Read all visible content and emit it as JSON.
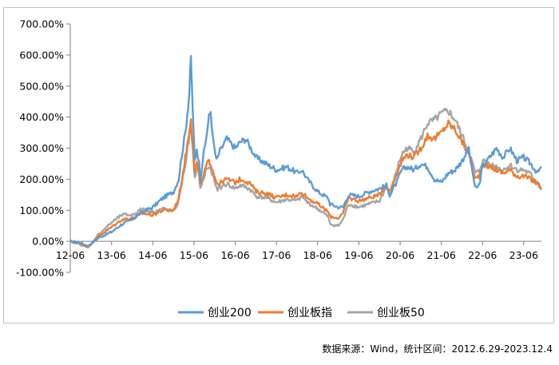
{
  "chart_data": {
    "type": "line",
    "title": "",
    "xlabel": "",
    "ylabel": "",
    "x_ticks": [
      "12-06",
      "13-06",
      "14-06",
      "15-06",
      "16-06",
      "17-06",
      "18-06",
      "19-06",
      "20-06",
      "21-06",
      "22-06",
      "23-06"
    ],
    "y_ticks": [
      "-100.00%",
      "0.00%",
      "100.00%",
      "200.00%",
      "300.00%",
      "400.00%",
      "500.00%",
      "600.00%",
      "700.00%"
    ],
    "ylim": [
      -100,
      700
    ],
    "grid": false,
    "legend_position": "bottom",
    "series": [
      {
        "name": "创业200",
        "color": "#5b9bd5",
        "x": [
          "2012-06-29",
          "2012-09-30",
          "2012-12-04",
          "2013-03-01",
          "2013-06-28",
          "2013-09-30",
          "2013-12-31",
          "2014-03-31",
          "2014-06-30",
          "2014-09-30",
          "2014-12-31",
          "2015-02-15",
          "2015-03-15",
          "2015-04-15",
          "2015-05-10",
          "2015-05-20",
          "2015-06-03",
          "2015-06-12",
          "2015-06-25",
          "2015-07-08",
          "2015-07-25",
          "2015-08-15",
          "2015-08-26",
          "2015-09-15",
          "2015-10-15",
          "2015-11-10",
          "2015-11-25",
          "2015-12-15",
          "2016-01-15",
          "2016-02-15",
          "2016-03-15",
          "2016-04-15",
          "2016-06-30",
          "2016-08-15",
          "2016-09-30",
          "2016-11-15",
          "2016-12-31",
          "2017-03-31",
          "2017-06-30",
          "2017-09-30",
          "2017-12-31",
          "2018-02-10",
          "2018-03-31",
          "2018-06-30",
          "2018-09-30",
          "2018-10-18",
          "2018-12-31",
          "2019-02-10",
          "2019-03-31",
          "2019-06-30",
          "2019-09-30",
          "2019-12-31",
          "2020-02-28",
          "2020-03-31",
          "2020-05-31",
          "2020-07-15",
          "2020-08-31",
          "2020-10-31",
          "2020-12-31",
          "2021-02-28",
          "2021-04-30",
          "2021-06-30",
          "2021-08-31",
          "2021-10-31",
          "2021-12-31",
          "2022-02-28",
          "2022-04-26",
          "2022-05-31",
          "2022-06-30",
          "2022-08-31",
          "2022-10-31",
          "2022-12-31",
          "2023-02-28",
          "2023-04-30",
          "2023-06-30",
          "2023-08-31",
          "2023-10-31",
          "2023-12-04"
        ],
        "y": [
          0,
          -5,
          -15,
          10,
          30,
          55,
          70,
          95,
          110,
          140,
          160,
          200,
          280,
          350,
          440,
          480,
          590,
          500,
          360,
          260,
          300,
          250,
          200,
          260,
          330,
          400,
          420,
          330,
          260,
          290,
          310,
          330,
          300,
          320,
          330,
          300,
          270,
          250,
          230,
          240,
          220,
          230,
          200,
          160,
          140,
          120,
          110,
          110,
          150,
          145,
          160,
          170,
          180,
          150,
          190,
          230,
          240,
          230,
          250,
          240,
          200,
          190,
          220,
          230,
          260,
          300,
          170,
          180,
          240,
          270,
          300,
          270,
          300,
          260,
          270,
          250,
          220,
          240
        ]
      },
      {
        "name": "创业板指",
        "color": "#ed7d31",
        "x": [
          "2012-06-29",
          "2012-09-30",
          "2012-12-04",
          "2013-03-01",
          "2013-06-28",
          "2013-09-30",
          "2013-12-31",
          "2014-03-31",
          "2014-06-30",
          "2014-09-30",
          "2014-12-31",
          "2015-02-15",
          "2015-03-15",
          "2015-04-15",
          "2015-05-10",
          "2015-05-20",
          "2015-06-03",
          "2015-06-12",
          "2015-06-25",
          "2015-07-08",
          "2015-07-25",
          "2015-08-15",
          "2015-08-26",
          "2015-09-15",
          "2015-10-15",
          "2015-11-10",
          "2015-11-25",
          "2015-12-15",
          "2016-01-15",
          "2016-02-15",
          "2016-03-15",
          "2016-04-15",
          "2016-06-30",
          "2016-08-15",
          "2016-09-30",
          "2016-11-15",
          "2016-12-31",
          "2017-03-31",
          "2017-06-30",
          "2017-09-30",
          "2017-12-31",
          "2018-02-10",
          "2018-03-31",
          "2018-06-30",
          "2018-09-30",
          "2018-10-18",
          "2018-12-31",
          "2019-02-10",
          "2019-03-31",
          "2019-06-30",
          "2019-09-30",
          "2019-12-31",
          "2020-02-28",
          "2020-03-31",
          "2020-05-31",
          "2020-07-15",
          "2020-08-31",
          "2020-10-31",
          "2020-12-31",
          "2021-02-28",
          "2021-04-30",
          "2021-06-30",
          "2021-08-31",
          "2021-10-31",
          "2021-12-31",
          "2022-02-28",
          "2022-04-26",
          "2022-05-31",
          "2022-06-30",
          "2022-08-31",
          "2022-10-31",
          "2022-12-31",
          "2023-02-28",
          "2023-04-30",
          "2023-06-30",
          "2023-08-31",
          "2023-10-31",
          "2023-12-04"
        ],
        "y": [
          0,
          -8,
          -18,
          15,
          45,
          70,
          75,
          90,
          85,
          100,
          100,
          140,
          200,
          270,
          330,
          360,
          400,
          340,
          280,
          220,
          250,
          220,
          180,
          200,
          240,
          260,
          250,
          230,
          190,
          185,
          195,
          200,
          190,
          200,
          195,
          185,
          160,
          155,
          140,
          150,
          145,
          160,
          140,
          120,
          95,
          80,
          75,
          90,
          140,
          130,
          140,
          150,
          185,
          160,
          220,
          260,
          280,
          270,
          300,
          340,
          330,
          350,
          380,
          360,
          320,
          280,
          200,
          210,
          250,
          240,
          230,
          220,
          230,
          210,
          210,
          200,
          185,
          175
        ]
      },
      {
        "name": "创业板50",
        "color": "#a5a5a5",
        "x": [
          "2012-06-29",
          "2012-09-30",
          "2012-12-04",
          "2013-03-01",
          "2013-06-28",
          "2013-09-30",
          "2013-12-31",
          "2014-03-31",
          "2014-06-30",
          "2014-09-30",
          "2014-12-31",
          "2015-02-15",
          "2015-03-15",
          "2015-04-15",
          "2015-05-10",
          "2015-05-20",
          "2015-06-03",
          "2015-06-12",
          "2015-06-25",
          "2015-07-08",
          "2015-07-25",
          "2015-08-15",
          "2015-08-26",
          "2015-09-15",
          "2015-10-15",
          "2015-11-10",
          "2015-11-25",
          "2015-12-15",
          "2016-01-15",
          "2016-02-15",
          "2016-03-15",
          "2016-04-15",
          "2016-06-30",
          "2016-08-15",
          "2016-09-30",
          "2016-11-15",
          "2016-12-31",
          "2017-03-31",
          "2017-06-30",
          "2017-09-30",
          "2017-12-31",
          "2018-02-10",
          "2018-03-31",
          "2018-06-30",
          "2018-09-30",
          "2018-10-18",
          "2018-12-31",
          "2019-02-10",
          "2019-03-31",
          "2019-06-30",
          "2019-09-30",
          "2019-12-31",
          "2020-02-28",
          "2020-03-31",
          "2020-05-31",
          "2020-07-15",
          "2020-08-31",
          "2020-10-31",
          "2020-12-31",
          "2021-02-28",
          "2021-04-30",
          "2021-06-30",
          "2021-08-31",
          "2021-10-31",
          "2021-12-31",
          "2022-02-28",
          "2022-04-26",
          "2022-05-31",
          "2022-06-30",
          "2022-08-31",
          "2022-10-31",
          "2022-12-31",
          "2023-02-28",
          "2023-04-30",
          "2023-06-30",
          "2023-08-31",
          "2023-10-31",
          "2023-12-04"
        ],
        "y": [
          0,
          -10,
          -20,
          20,
          60,
          85,
          85,
          105,
          95,
          105,
          95,
          130,
          190,
          250,
          310,
          340,
          370,
          320,
          260,
          200,
          240,
          210,
          170,
          190,
          230,
          240,
          230,
          210,
          170,
          170,
          180,
          185,
          170,
          180,
          175,
          165,
          145,
          140,
          125,
          135,
          130,
          145,
          125,
          105,
          80,
          55,
          50,
          70,
          120,
          110,
          120,
          130,
          175,
          150,
          230,
          280,
          300,
          290,
          330,
          380,
          390,
          410,
          420,
          390,
          340,
          290,
          220,
          225,
          260,
          250,
          240,
          230,
          245,
          230,
          230,
          215,
          190,
          165
        ]
      }
    ]
  },
  "source_note": "数据来源：Wind，统计区间：2012.6.29-2023.12.4"
}
